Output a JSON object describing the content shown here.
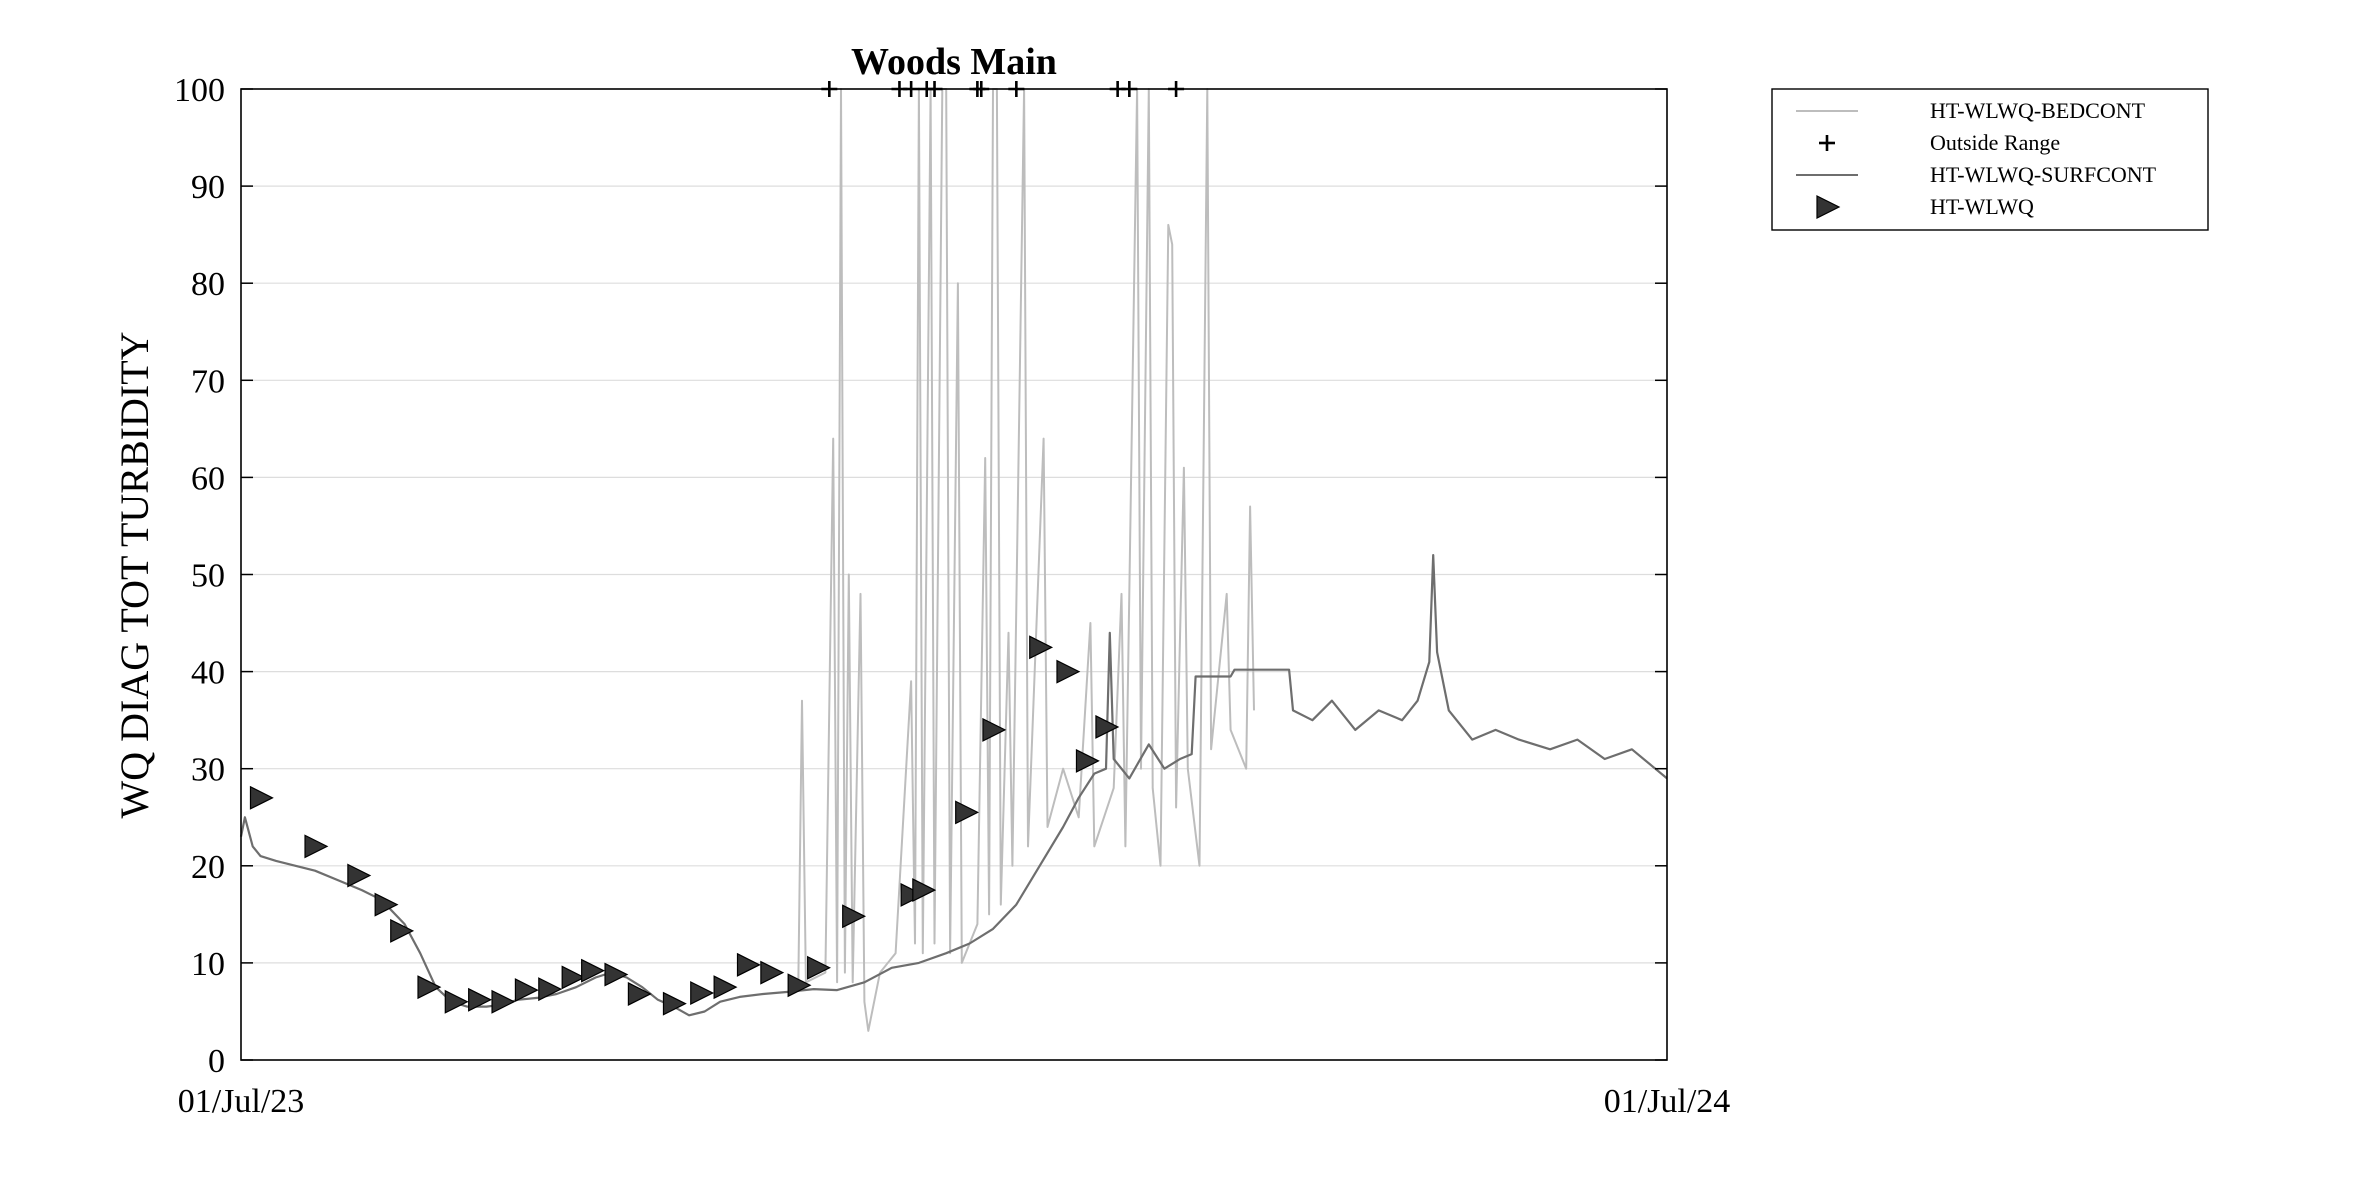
{
  "chart_data": {
    "type": "line",
    "title": "Woods Main",
    "xlabel": "",
    "ylabel": "WQ DIAG TOT TURBIDITY",
    "x_range": [
      "2023-07-01",
      "2024-07-01"
    ],
    "x_ticks": [
      "01/Jul/23",
      "01/Jul/24"
    ],
    "ylim": [
      0,
      100
    ],
    "y_ticks": [
      "0",
      "10",
      "20",
      "30",
      "40",
      "50",
      "60",
      "70",
      "80",
      "90",
      "100"
    ],
    "grid": "horizontal",
    "legend_position": "outside-top-right",
    "colors": {
      "bedcont": "#bdbdbd",
      "surfcont": "#6e6e6e",
      "marker": "#333333",
      "outside": "#000000",
      "grid": "#dddddd",
      "axes": "#000000"
    },
    "series": [
      {
        "name": "HT-WLWQ-BEDCONT",
        "style": "line",
        "points": [
          [
            "2023-11-21",
            7
          ],
          [
            "2023-11-22",
            37
          ],
          [
            "2023-11-23",
            8
          ],
          [
            "2023-11-28",
            9
          ],
          [
            "2023-11-30",
            64
          ],
          [
            "2023-12-01",
            8
          ],
          [
            "2023-12-02",
            100
          ],
          [
            "2023-12-03",
            9
          ],
          [
            "2023-12-04",
            50
          ],
          [
            "2023-12-05",
            8
          ],
          [
            "2023-12-07",
            48
          ],
          [
            "2023-12-08",
            6
          ],
          [
            "2023-12-09",
            3
          ],
          [
            "2023-12-12",
            9
          ],
          [
            "2023-12-16",
            11
          ],
          [
            "2023-12-20",
            39
          ],
          [
            "2023-12-21",
            12
          ],
          [
            "2023-12-22",
            100
          ],
          [
            "2023-12-23",
            11
          ],
          [
            "2023-12-25",
            100
          ],
          [
            "2023-12-26",
            12
          ],
          [
            "2023-12-28",
            100
          ],
          [
            "2023-12-29",
            100
          ],
          [
            "2023-12-30",
            11
          ],
          [
            "2024-01-01",
            80
          ],
          [
            "2024-01-02",
            10
          ],
          [
            "2024-01-06",
            14
          ],
          [
            "2024-01-08",
            62
          ],
          [
            "2024-01-09",
            15
          ],
          [
            "2024-01-10",
            100
          ],
          [
            "2024-01-11",
            100
          ],
          [
            "2024-01-12",
            16
          ],
          [
            "2024-01-14",
            44
          ],
          [
            "2024-01-15",
            20
          ],
          [
            "2024-01-18",
            100
          ],
          [
            "2024-01-19",
            22
          ],
          [
            "2024-01-23",
            64
          ],
          [
            "2024-01-24",
            24
          ],
          [
            "2024-01-28",
            30
          ],
          [
            "2024-02-01",
            25
          ],
          [
            "2024-02-04",
            45
          ],
          [
            "2024-02-05",
            22
          ],
          [
            "2024-02-10",
            28
          ],
          [
            "2024-02-12",
            48
          ],
          [
            "2024-02-13",
            22
          ],
          [
            "2024-02-16",
            100
          ],
          [
            "2024-02-17",
            30
          ],
          [
            "2024-02-19",
            100
          ],
          [
            "2024-02-20",
            28
          ],
          [
            "2024-02-22",
            20
          ],
          [
            "2024-02-24",
            86
          ],
          [
            "2024-02-25",
            84
          ],
          [
            "2024-02-26",
            26
          ],
          [
            "2024-02-28",
            61
          ],
          [
            "2024-02-29",
            30
          ],
          [
            "2024-03-03",
            20
          ],
          [
            "2024-03-05",
            100
          ],
          [
            "2024-03-06",
            32
          ],
          [
            "2024-03-10",
            48
          ],
          [
            "2024-03-11",
            34
          ],
          [
            "2024-03-15",
            30
          ],
          [
            "2024-03-16",
            57
          ],
          [
            "2024-03-17",
            36
          ]
        ]
      },
      {
        "name": "Outside Range",
        "style": "plus"
      },
      {
        "name": "HT-WLWQ-SURFCONT",
        "style": "line",
        "points": [
          [
            "2023-07-01",
            23
          ],
          [
            "2023-07-02",
            25
          ],
          [
            "2023-07-04",
            22
          ],
          [
            "2023-07-06",
            21
          ],
          [
            "2023-07-10",
            20.5
          ],
          [
            "2023-07-15",
            20
          ],
          [
            "2023-07-20",
            19.5
          ],
          [
            "2023-07-26",
            18.5
          ],
          [
            "2023-08-01",
            17.5
          ],
          [
            "2023-08-06",
            16.5
          ],
          [
            "2023-08-12",
            14
          ],
          [
            "2023-08-16",
            11
          ],
          [
            "2023-08-20",
            7.5
          ],
          [
            "2023-08-24",
            6
          ],
          [
            "2023-08-28",
            5.5
          ],
          [
            "2023-09-02",
            5.5
          ],
          [
            "2023-09-06",
            5.7
          ],
          [
            "2023-09-10",
            6.2
          ],
          [
            "2023-09-15",
            6.4
          ],
          [
            "2023-09-20",
            6.8
          ],
          [
            "2023-09-25",
            7.5
          ],
          [
            "2023-09-30",
            8.5
          ],
          [
            "2023-10-04",
            9
          ],
          [
            "2023-10-08",
            8.5
          ],
          [
            "2023-10-12",
            7.5
          ],
          [
            "2023-10-16",
            6.2
          ],
          [
            "2023-10-20",
            5.5
          ],
          [
            "2023-10-24",
            4.6
          ],
          [
            "2023-10-28",
            5
          ],
          [
            "2023-11-01",
            6
          ],
          [
            "2023-11-06",
            6.5
          ],
          [
            "2023-11-12",
            6.8
          ],
          [
            "2023-11-18",
            7
          ],
          [
            "2023-11-25",
            7.3
          ],
          [
            "2023-12-01",
            7.2
          ],
          [
            "2023-12-08",
            8
          ],
          [
            "2023-12-15",
            9.5
          ],
          [
            "2023-12-22",
            10
          ],
          [
            "2023-12-29",
            11
          ],
          [
            "2024-01-04",
            12
          ],
          [
            "2024-01-10",
            13.5
          ],
          [
            "2024-01-16",
            16
          ],
          [
            "2024-01-22",
            20
          ],
          [
            "2024-01-28",
            24
          ],
          [
            "2024-02-01",
            27
          ],
          [
            "2024-02-05",
            29.5
          ],
          [
            "2024-02-08",
            30
          ],
          [
            "2024-02-09",
            44
          ],
          [
            "2024-02-10",
            31
          ],
          [
            "2024-02-14",
            29
          ],
          [
            "2024-02-19",
            32.5
          ],
          [
            "2024-02-23",
            30
          ],
          [
            "2024-02-27",
            31
          ],
          [
            "2024-03-01",
            31.5
          ],
          [
            "2024-03-02",
            39.5
          ],
          [
            "2024-03-11",
            39.5
          ],
          [
            "2024-03-12",
            40.2
          ],
          [
            "2024-03-26",
            40.2
          ],
          [
            "2024-03-27",
            36
          ],
          [
            "2024-04-01",
            35
          ],
          [
            "2024-04-06",
            37
          ],
          [
            "2024-04-12",
            34
          ],
          [
            "2024-04-18",
            36
          ],
          [
            "2024-04-24",
            35
          ],
          [
            "2024-04-28",
            37
          ],
          [
            "2024-05-01",
            41
          ],
          [
            "2024-05-02",
            52
          ],
          [
            "2024-05-03",
            42
          ],
          [
            "2024-05-06",
            36
          ],
          [
            "2024-05-12",
            33
          ],
          [
            "2024-05-18",
            34
          ],
          [
            "2024-05-24",
            33
          ],
          [
            "2024-06-01",
            32
          ],
          [
            "2024-06-08",
            33
          ],
          [
            "2024-06-15",
            31
          ],
          [
            "2024-06-22",
            32
          ],
          [
            "2024-06-28",
            30
          ],
          [
            "2024-07-01",
            29
          ]
        ]
      },
      {
        "name": "HT-WLWQ",
        "style": "triangle-right",
        "points": [
          [
            "2023-07-06",
            27
          ],
          [
            "2023-07-20",
            22
          ],
          [
            "2023-07-31",
            19
          ],
          [
            "2023-08-07",
            16
          ],
          [
            "2023-08-11",
            13.3
          ],
          [
            "2023-08-18",
            7.5
          ],
          [
            "2023-08-25",
            6
          ],
          [
            "2023-08-31",
            6.2
          ],
          [
            "2023-09-06",
            6
          ],
          [
            "2023-09-12",
            7.2
          ],
          [
            "2023-09-18",
            7.3
          ],
          [
            "2023-09-24",
            8.5
          ],
          [
            "2023-09-29",
            9.2
          ],
          [
            "2023-10-05",
            8.8
          ],
          [
            "2023-10-11",
            6.8
          ],
          [
            "2023-10-20",
            5.8
          ],
          [
            "2023-10-27",
            6.9
          ],
          [
            "2023-11-02",
            7.5
          ],
          [
            "2023-11-08",
            9.8
          ],
          [
            "2023-11-14",
            9
          ],
          [
            "2023-11-21",
            7.7
          ],
          [
            "2023-11-26",
            9.5
          ],
          [
            "2023-12-05",
            14.8
          ],
          [
            "2023-12-20",
            17
          ],
          [
            "2023-12-23",
            17.5
          ],
          [
            "2024-01-03",
            25.5
          ],
          [
            "2024-01-10",
            34
          ],
          [
            "2024-01-22",
            42.5
          ],
          [
            "2024-01-29",
            40
          ],
          [
            "2024-02-03",
            30.8
          ],
          [
            "2024-02-08",
            34.3
          ]
        ]
      }
    ],
    "outside_range_points": [
      [
        "2023-11-29",
        100
      ],
      [
        "2023-12-17",
        100
      ],
      [
        "2023-12-20",
        100
      ],
      [
        "2023-12-24",
        100
      ],
      [
        "2023-12-26",
        100
      ],
      [
        "2024-01-06",
        100
      ],
      [
        "2024-01-07",
        100
      ],
      [
        "2024-01-16",
        100
      ],
      [
        "2024-02-11",
        100
      ],
      [
        "2024-02-14",
        100
      ],
      [
        "2024-02-26",
        100
      ]
    ]
  }
}
